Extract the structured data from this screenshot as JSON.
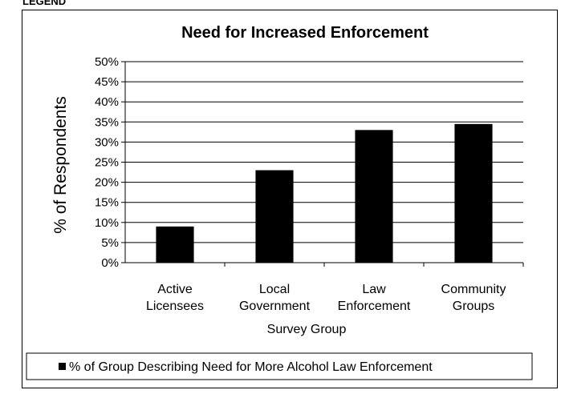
{
  "page_fragment": "LEGEND",
  "chart_data": {
    "type": "bar",
    "title": "Need for Increased Enforcement",
    "xlabel": "Survey Group",
    "ylabel": "% of Respondents",
    "categories": [
      [
        "Active",
        "Licensees"
      ],
      [
        "Local",
        "Government"
      ],
      [
        "Law",
        "Enforcement"
      ],
      [
        "Community",
        "Groups"
      ]
    ],
    "series": [
      {
        "name": "% of Group Describing Need for More Alcohol Law Enforcement",
        "values": [
          9,
          23,
          33,
          34.5
        ],
        "color": "#000000"
      }
    ],
    "yticks": [
      "0%",
      "5%",
      "10%",
      "15%",
      "20%",
      "25%",
      "30%",
      "35%",
      "40%",
      "45%",
      "50%"
    ],
    "ylim": [
      0,
      50
    ],
    "grid": true,
    "legend_position": "bottom"
  }
}
